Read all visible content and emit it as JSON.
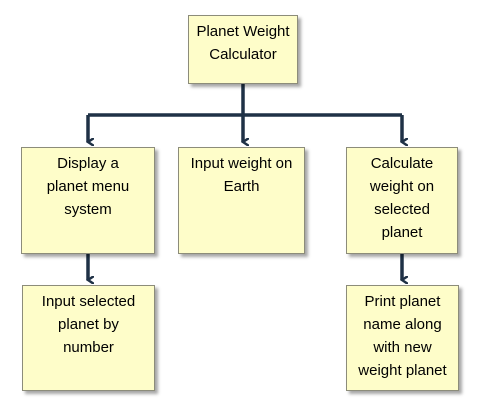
{
  "diagram": {
    "colors": {
      "box_fill": "#fefdc9",
      "box_border": "#8c8c7a",
      "connector": "#1f3146",
      "text": "#000000"
    },
    "nodes": {
      "root": {
        "lines": [
          "Planet Weight",
          "Calculator"
        ]
      },
      "display_menu": {
        "lines": [
          "Display a",
          "planet menu",
          "system"
        ]
      },
      "input_weight": {
        "lines": [
          "Input weight on",
          "Earth"
        ]
      },
      "calculate": {
        "lines": [
          "Calculate",
          "weight on",
          "selected",
          "planet"
        ]
      },
      "input_planet": {
        "lines": [
          "Input selected",
          "planet by",
          "number"
        ]
      },
      "print_result": {
        "lines": [
          "Print planet",
          "name along",
          "with new",
          "weight planet"
        ]
      }
    },
    "edges": [
      {
        "from": "root",
        "to": "display_menu"
      },
      {
        "from": "root",
        "to": "input_weight"
      },
      {
        "from": "root",
        "to": "calculate"
      },
      {
        "from": "display_menu",
        "to": "input_planet"
      },
      {
        "from": "calculate",
        "to": "print_result"
      }
    ]
  }
}
